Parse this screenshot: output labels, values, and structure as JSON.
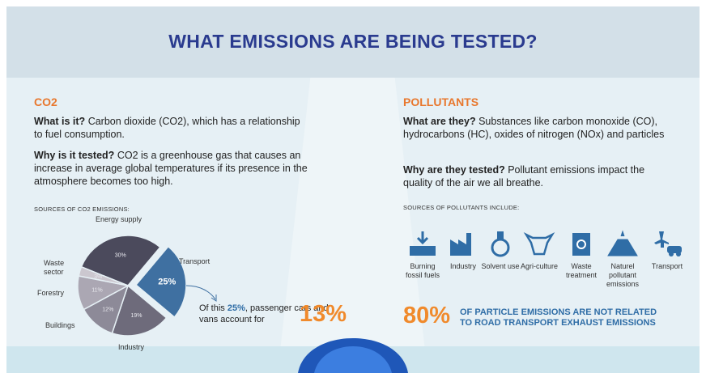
{
  "title": "WHAT EMISSIONS ARE BEING TESTED?",
  "co2": {
    "heading": "CO2",
    "what_q": "What is it?",
    "what_a": "Carbon dioxide (CO2), which has a relationship to fuel consumption.",
    "why_q": "Why is it tested?",
    "why_a": "CO2 is a greenhouse gas that causes an increase in average global temperatures if its presence in the atmosphere becomes too high.",
    "sources_heading": "SOURCES OF CO2 EMISSIONS:",
    "callout_before": "Of this ",
    "callout_highlight": "25%",
    "callout_after": ", passenger cars and vans account for",
    "callout_figure": "13%"
  },
  "pollutants": {
    "heading": "POLLUTANTS",
    "what_q": "What are they?",
    "what_a": "Substances like carbon monoxide (CO), hydrocarbons (HC), oxides of nitrogen (NOx) and particles",
    "why_q": "Why are they tested?",
    "why_a": "Pollutant emissions impact the quality of the air we all breathe.",
    "sources_heading": "SOURCES OF POLLUTANTS INCLUDE:",
    "sources": [
      "Burning fossil fuels",
      "Industry",
      "Solvent use",
      "Agri-culture",
      "Waste treatment",
      "Naturel pollutant emissions",
      "Transport"
    ],
    "stat_figure": "80%",
    "stat_text": "OF PARTICLE EMISSIONS ARE NOT RELATED TO ROAD TRANSPORT EXHAUST EMISSIONS"
  },
  "chart_data": {
    "type": "pie",
    "categories": [
      "Energy supply",
      "Transport",
      "Industry",
      "Buildings",
      "Forestry",
      "Waste sector"
    ],
    "values": [
      30,
      25,
      19,
      12,
      11,
      3
    ],
    "value_labels": [
      "30%",
      "25%",
      "19%",
      "12%",
      "11%",
      "3%"
    ],
    "colors": [
      "#4b4a5c",
      "#3f70a1",
      "#6e6b7b",
      "#8d8a98",
      "#aba7b3",
      "#cbc7cf"
    ],
    "exploded": "Transport"
  }
}
